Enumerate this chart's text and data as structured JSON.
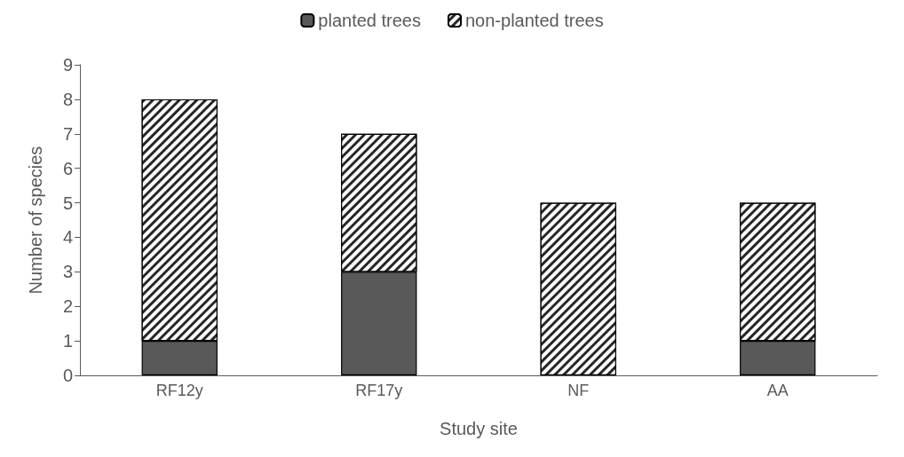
{
  "chart_data": {
    "type": "bar",
    "stacked": true,
    "xlabel": "Study site",
    "ylabel": "Number of species",
    "categories": [
      "RF12y",
      "RF17y",
      "NF",
      "AA"
    ],
    "series": [
      {
        "name": "planted trees",
        "color": "#595959",
        "values": [
          1,
          3,
          0,
          1
        ]
      },
      {
        "name": "non-planted trees",
        "color": "#262626",
        "values": [
          7,
          4,
          5,
          4
        ]
      }
    ],
    "ylim": [
      0,
      9
    ],
    "yticks": [
      0,
      1,
      2,
      3,
      4,
      5,
      6,
      7,
      8,
      9
    ],
    "grid": false,
    "legend": "top"
  }
}
